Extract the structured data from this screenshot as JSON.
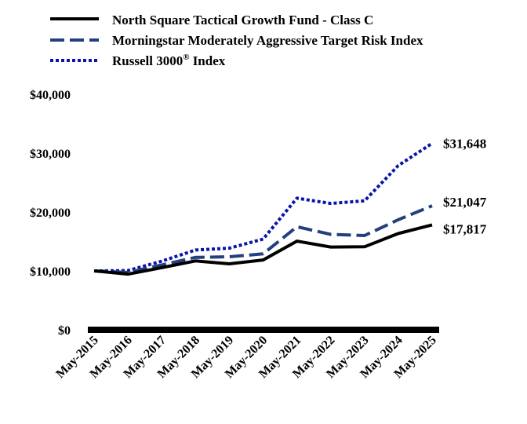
{
  "chart_data": {
    "type": "line",
    "title": "",
    "xlabel": "",
    "ylabel": "",
    "categories": [
      "May-2015",
      "May-2016",
      "May-2017",
      "May-2018",
      "May-2019",
      "May-2020",
      "May-2021",
      "May-2022",
      "May-2023",
      "May-2024",
      "May-2025"
    ],
    "ylim": [
      0,
      40000
    ],
    "yticks": [
      0,
      10000,
      20000,
      30000,
      40000
    ],
    "ytick_labels": [
      "$0",
      "$10,000",
      "$20,000",
      "$30,000",
      "$40,000"
    ],
    "legend_position": "top-left",
    "grid": false,
    "series": [
      {
        "name": "North Square Tactical Growth Fund - Class C",
        "style": "solid",
        "color": "#000000",
        "values": [
          10000,
          9450,
          10550,
          11700,
          11200,
          11850,
          15050,
          14050,
          14100,
          16350,
          17817
        ],
        "end_label": "$17,817"
      },
      {
        "name": "Morningstar Moderately Aggressive Target Risk Index",
        "style": "dashed",
        "color": "#243f7f",
        "values": [
          10000,
          9750,
          11000,
          12300,
          12400,
          12900,
          17500,
          16200,
          16000,
          18700,
          21047
        ],
        "end_label": "$21,047"
      },
      {
        "name": "Russell 3000® Index",
        "name_base": "Russell 3000",
        "name_sup": "®",
        "name_suffix": " Index",
        "style": "dotted",
        "color": "#0a14a6",
        "values": [
          10000,
          10050,
          11650,
          13550,
          13850,
          15400,
          22350,
          21450,
          21900,
          27900,
          31648
        ],
        "end_label": "$31,648"
      }
    ]
  }
}
